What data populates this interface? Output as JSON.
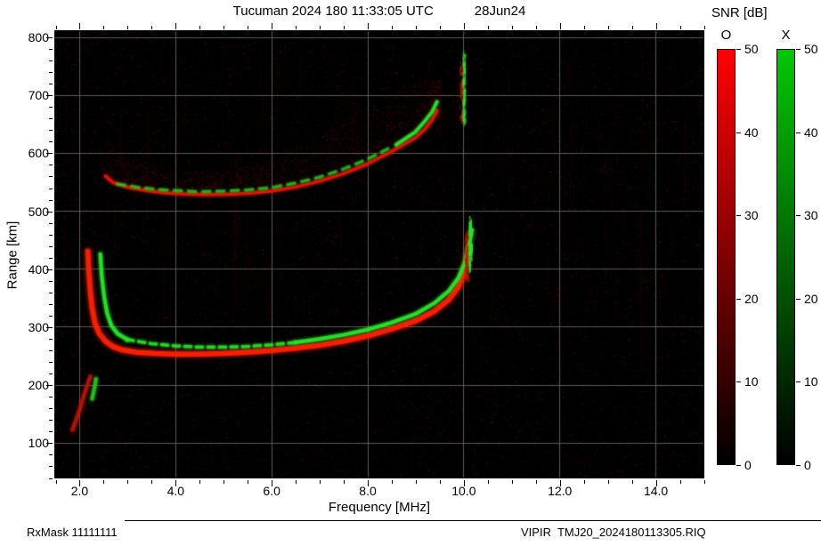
{
  "header": {
    "title": "Tucuman 2024 180 11:33:05 UTC",
    "date": "28Jun24"
  },
  "footer": {
    "left": "RxMask 11111111",
    "right": "VIPIR  TMJ20_2024180113305.RIQ"
  },
  "colorbar": {
    "title": "SNR [dB]",
    "min": 0,
    "max": 50,
    "bars": [
      {
        "label": "O",
        "color": "#ff0000",
        "ticks": [
          0,
          10,
          20,
          30,
          40,
          50
        ]
      },
      {
        "label": "X",
        "color": "#00c800",
        "ticks": [
          0,
          10,
          20,
          30,
          40,
          50
        ]
      }
    ]
  },
  "chart_data": {
    "type": "heatmap",
    "title": "Tucuman 2024 180 11:33:05 UTC 28Jun24",
    "xlabel": "Frequency [MHz]",
    "ylabel": "Range [km]",
    "xlim": [
      1.5,
      15.0
    ],
    "ylim": [
      40,
      810
    ],
    "x_ticks": [
      2,
      4,
      6,
      8,
      10,
      12,
      14
    ],
    "x_tick_labels": [
      "2.0",
      "4.0",
      "6.0",
      "8.0",
      "10.0",
      "12.0",
      "14.0"
    ],
    "y_ticks": [
      100,
      200,
      300,
      400,
      500,
      600,
      700,
      800
    ],
    "y_tick_labels": [
      "100",
      "200",
      "300",
      "400",
      "500",
      "600",
      "700",
      "800"
    ],
    "grid": true,
    "grid_color": "#5a5a5a",
    "background": "#000000",
    "noise": {
      "seed": 20241801,
      "red_speckle": 13000,
      "green_speckle": 1600,
      "striations": 260
    },
    "series": [
      {
        "name": "spread-F-diffuse",
        "type": "cloud",
        "color": "#990000",
        "count": 3200,
        "points": [
          [
            2.5,
            555,
            70
          ],
          [
            3.0,
            542,
            55
          ],
          [
            3.5,
            535,
            48
          ],
          [
            4.0,
            530,
            42
          ],
          [
            4.5,
            528,
            40
          ],
          [
            5.0,
            528,
            42
          ],
          [
            5.5,
            530,
            46
          ],
          [
            6.0,
            534,
            55
          ],
          [
            6.5,
            541,
            65
          ],
          [
            7.0,
            551,
            80
          ],
          [
            7.5,
            564,
            95
          ],
          [
            8.0,
            581,
            105
          ],
          [
            8.5,
            602,
            105
          ],
          [
            9.0,
            626,
            95
          ],
          [
            9.2,
            641,
            85
          ],
          [
            9.4,
            660,
            70
          ],
          [
            9.5,
            668,
            50
          ]
        ]
      },
      {
        "name": "multi-hop-trace-O-mode",
        "type": "trace",
        "color": "#dd1600",
        "width": 3.5,
        "points": [
          [
            2.55,
            560
          ],
          [
            2.7,
            549
          ],
          [
            3.0,
            541
          ],
          [
            3.4,
            535
          ],
          [
            3.8,
            531
          ],
          [
            4.2,
            529
          ],
          [
            4.6,
            528
          ],
          [
            5.0,
            528
          ],
          [
            5.5,
            530
          ],
          [
            6.0,
            534
          ],
          [
            6.5,
            541
          ],
          [
            7.0,
            551
          ],
          [
            7.5,
            564
          ],
          [
            8.0,
            581
          ],
          [
            8.5,
            602
          ],
          [
            9.0,
            626
          ],
          [
            9.2,
            641
          ],
          [
            9.35,
            657
          ],
          [
            9.45,
            673
          ]
        ]
      },
      {
        "name": "multi-hop-trace-X-mode",
        "type": "trace",
        "color": "#1ecc1e",
        "width": 3,
        "alpha": 0.8,
        "dash": [
          8,
          8
        ],
        "points": [
          [
            2.8,
            546
          ],
          [
            3.2,
            541
          ],
          [
            3.6,
            537
          ],
          [
            4.0,
            535
          ],
          [
            4.5,
            533
          ],
          [
            5.0,
            534
          ],
          [
            5.5,
            536
          ],
          [
            6.0,
            540
          ],
          [
            6.5,
            548
          ],
          [
            7.0,
            558
          ],
          [
            7.5,
            572
          ],
          [
            8.0,
            589
          ],
          [
            8.5,
            610
          ]
        ]
      },
      {
        "name": "multi-hop-trace-X-tip",
        "type": "trace",
        "color": "#2ae32a",
        "width": 3.5,
        "points": [
          [
            8.6,
            614
          ],
          [
            9.0,
            636
          ],
          [
            9.2,
            655
          ],
          [
            9.35,
            671
          ],
          [
            9.45,
            688
          ]
        ]
      },
      {
        "name": "sporadic-E-O-mode",
        "type": "trace",
        "color": "#cc1400",
        "width": 4,
        "alpha": 0.85,
        "points": [
          [
            1.86,
            122
          ],
          [
            1.94,
            140
          ],
          [
            2.02,
            160
          ],
          [
            2.1,
            182
          ],
          [
            2.18,
            202
          ],
          [
            2.23,
            214
          ]
        ]
      },
      {
        "name": "sporadic-E-X-mode",
        "type": "trace",
        "color": "#22cc22",
        "width": 4,
        "alpha": 0.9,
        "points": [
          [
            2.27,
            176
          ],
          [
            2.3,
            188
          ],
          [
            2.33,
            200
          ],
          [
            2.35,
            210
          ]
        ]
      },
      {
        "name": "F-trace-O-mode",
        "type": "trace",
        "color": "#ff2000",
        "width": 5.5,
        "points": [
          [
            2.18,
            430
          ],
          [
            2.2,
            396
          ],
          [
            2.23,
            362
          ],
          [
            2.27,
            332
          ],
          [
            2.33,
            306
          ],
          [
            2.42,
            288
          ],
          [
            2.55,
            275
          ],
          [
            2.7,
            266
          ],
          [
            2.9,
            260
          ],
          [
            3.2,
            256
          ],
          [
            3.6,
            254
          ],
          [
            4.0,
            253
          ],
          [
            4.5,
            253
          ],
          [
            5.0,
            254
          ],
          [
            5.5,
            256
          ],
          [
            6.0,
            259
          ],
          [
            6.5,
            263
          ],
          [
            7.0,
            268
          ],
          [
            7.5,
            275
          ],
          [
            8.0,
            284
          ],
          [
            8.5,
            296
          ],
          [
            9.0,
            310
          ],
          [
            9.4,
            327
          ],
          [
            9.7,
            347
          ],
          [
            9.9,
            369
          ],
          [
            10.0,
            390
          ],
          [
            10.07,
            416
          ],
          [
            10.11,
            441
          ]
        ]
      },
      {
        "name": "F-trace-X-mode-left",
        "type": "trace",
        "color": "#26e626",
        "width": 4,
        "points": [
          [
            2.44,
            425
          ],
          [
            2.47,
            388
          ],
          [
            2.52,
            352
          ],
          [
            2.58,
            324
          ],
          [
            2.67,
            302
          ],
          [
            2.8,
            288
          ],
          [
            3.0,
            278
          ]
        ]
      },
      {
        "name": "F-trace-X-mode-mid",
        "type": "trace",
        "color": "#26e626",
        "width": 3.5,
        "alpha": 0.9,
        "dash": [
          7,
          6
        ],
        "points": [
          [
            3.0,
            278
          ],
          [
            3.5,
            271
          ],
          [
            4.0,
            267
          ],
          [
            4.5,
            265
          ],
          [
            5.0,
            265
          ],
          [
            5.5,
            266
          ],
          [
            6.0,
            269
          ],
          [
            6.5,
            273
          ]
        ]
      },
      {
        "name": "F-trace-X-mode-right",
        "type": "trace",
        "color": "#26e626",
        "width": 4,
        "points": [
          [
            6.5,
            273
          ],
          [
            7.0,
            279
          ],
          [
            7.5,
            286
          ],
          [
            8.0,
            295
          ],
          [
            8.5,
            307
          ],
          [
            9.0,
            322
          ],
          [
            9.4,
            341
          ],
          [
            9.7,
            362
          ],
          [
            9.9,
            385
          ],
          [
            10.03,
            410
          ],
          [
            10.12,
            440
          ],
          [
            10.18,
            467
          ]
        ]
      },
      {
        "name": "f-critical-streak-O",
        "type": "streak",
        "color": "#cc1100",
        "x": 10.06,
        "range": [
          388,
          468
        ],
        "count": 50,
        "jitter": 4
      },
      {
        "name": "f-critical-streak-X",
        "type": "streak",
        "color": "#29e629",
        "x": 10.13,
        "range": [
          398,
          492
        ],
        "count": 80,
        "jitter": 3
      },
      {
        "name": "second-hop-critical-streak-O",
        "type": "streak",
        "color": "#bb1100",
        "x": 9.96,
        "range": [
          648,
          760
        ],
        "count": 45,
        "jitter": 5
      },
      {
        "name": "second-hop-critical-streak-X",
        "type": "streak",
        "color": "#29e629",
        "x": 10.0,
        "range": [
          655,
          778
        ],
        "count": 100,
        "jitter": 3
      }
    ]
  }
}
